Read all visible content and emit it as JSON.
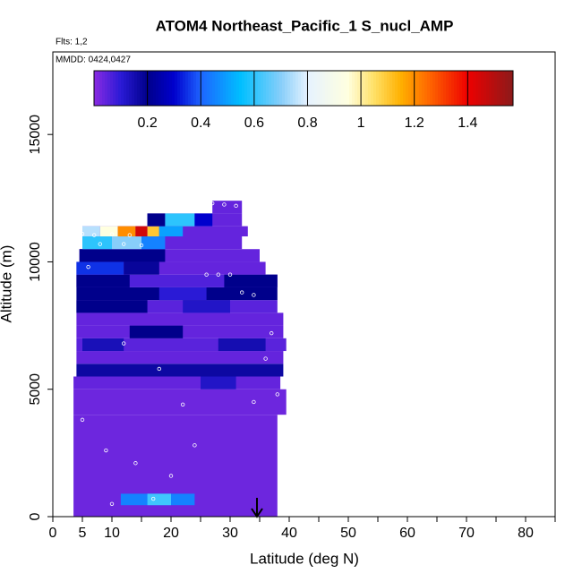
{
  "chart_data": {
    "type": "curtain",
    "title": "ATOM4 Northeast_Pacific_1 S_nucl_AMP",
    "flights": "Flts: 1,2",
    "dates": "MMDD: 0424,0427",
    "x_label": "Latitude (deg N)",
    "y_label": "Altitude (m)",
    "xlim": [
      0,
      85
    ],
    "xticks": [
      0,
      5,
      10,
      20,
      30,
      40,
      50,
      60,
      70,
      80
    ],
    "xminor_ticks": [
      15,
      25,
      35,
      45,
      55,
      65,
      75,
      85
    ],
    "ylim": [
      0,
      18240
    ],
    "yticks": [
      0,
      5000,
      10000,
      15000
    ],
    "colorbar_lim": [
      0,
      1.57
    ],
    "colorbar_ticks": [
      0.2,
      0.4,
      0.6,
      0.8,
      1.0,
      1.2,
      1.4
    ],
    "colorscale": [
      [
        0,
        "#8a2be2"
      ],
      [
        0.1,
        "#2a1ad6"
      ],
      [
        0.2,
        "#00008b"
      ],
      [
        0.3,
        "#0000cd"
      ],
      [
        0.4,
        "#1e64ff"
      ],
      [
        0.55,
        "#00bfff"
      ],
      [
        0.7,
        "#87cefa"
      ],
      [
        0.8,
        "#e6f2ff"
      ],
      [
        0.95,
        "#ffffe0"
      ],
      [
        1.05,
        "#ffe066"
      ],
      [
        1.15,
        "#ffb000"
      ],
      [
        1.25,
        "#ff6a00"
      ],
      [
        1.4,
        "#ee0000"
      ],
      [
        1.57,
        "#8b1a1a"
      ]
    ],
    "cells": [
      [
        3.5,
        38,
        0,
        4000,
        0.03
      ],
      [
        11.5,
        24,
        450,
        900,
        0.45
      ],
      [
        16,
        20,
        450,
        900,
        0.62
      ],
      [
        3.5,
        39.5,
        4000,
        5000,
        0.03
      ],
      [
        3.5,
        38.5,
        5000,
        5500,
        0.04
      ],
      [
        25,
        31,
        5000,
        5500,
        0.12
      ],
      [
        4,
        39,
        5500,
        6000,
        0.17
      ],
      [
        4,
        39,
        6000,
        6500,
        0.04
      ],
      [
        4,
        39.5,
        6500,
        7000,
        0.05
      ],
      [
        5,
        12,
        6500,
        7000,
        0.14
      ],
      [
        28,
        36,
        6500,
        7000,
        0.15
      ],
      [
        4,
        39,
        7000,
        7500,
        0.04
      ],
      [
        13,
        22,
        7000,
        7500,
        0.2
      ],
      [
        4,
        39,
        7500,
        8000,
        0.04
      ],
      [
        4,
        38,
        8000,
        8500,
        0.05
      ],
      [
        4,
        16,
        8000,
        8500,
        0.2
      ],
      [
        22,
        30,
        8000,
        8500,
        0.12
      ],
      [
        4,
        38,
        8500,
        9000,
        0.2
      ],
      [
        18,
        26,
        8500,
        9000,
        0.1
      ],
      [
        4,
        38,
        9000,
        9500,
        0.06
      ],
      [
        4,
        13,
        9000,
        9500,
        0.2
      ],
      [
        29,
        38,
        9000,
        9500,
        0.2
      ],
      [
        4,
        36,
        9500,
        10000,
        0.04
      ],
      [
        4,
        12,
        9500,
        10000,
        0.35
      ],
      [
        12,
        18,
        9500,
        10000,
        0.18
      ],
      [
        4.5,
        35,
        10000,
        10500,
        0.04
      ],
      [
        4.5,
        19,
        10000,
        10500,
        0.2
      ],
      [
        5,
        32,
        10500,
        11000,
        0.04
      ],
      [
        5,
        10,
        10500,
        11000,
        0.6
      ],
      [
        10,
        15,
        10500,
        11000,
        0.7
      ],
      [
        15,
        19,
        10500,
        11000,
        0.45
      ],
      [
        5,
        33,
        11000,
        11400,
        0.04
      ],
      [
        5,
        8,
        11000,
        11400,
        0.75
      ],
      [
        8,
        11,
        11000,
        11400,
        0.95
      ],
      [
        11,
        14,
        11000,
        11400,
        1.2
      ],
      [
        14,
        16,
        11000,
        11400,
        1.45
      ],
      [
        16,
        18,
        11000,
        11400,
        1.1
      ],
      [
        18,
        22,
        11000,
        11400,
        0.5
      ],
      [
        16,
        32,
        11400,
        11900,
        0.04
      ],
      [
        16,
        19,
        11400,
        11900,
        0.2
      ],
      [
        19,
        24,
        11400,
        11900,
        0.6
      ],
      [
        24,
        27,
        11400,
        11900,
        0.3
      ],
      [
        27,
        32,
        11900,
        12400,
        0.04
      ]
    ],
    "samples": [
      [
        5,
        11100
      ],
      [
        7,
        11050
      ],
      [
        10,
        11080
      ],
      [
        13,
        11050
      ],
      [
        8,
        10700
      ],
      [
        12,
        10700
      ],
      [
        15,
        10650
      ],
      [
        26,
        9500
      ],
      [
        28,
        9500
      ],
      [
        30,
        9500
      ],
      [
        32,
        8800
      ],
      [
        34,
        8700
      ],
      [
        37,
        7200
      ],
      [
        36,
        6200
      ],
      [
        38,
        4800
      ],
      [
        34,
        4500
      ],
      [
        5,
        3800
      ],
      [
        9,
        2600
      ],
      [
        14,
        2100
      ],
      [
        20,
        1600
      ],
      [
        24,
        2800
      ],
      [
        10,
        500
      ],
      [
        17,
        700
      ],
      [
        27,
        12300
      ],
      [
        29,
        12250
      ],
      [
        31,
        12200
      ],
      [
        6,
        9800
      ],
      [
        18,
        5800
      ],
      [
        22,
        4400
      ],
      [
        12,
        6800
      ]
    ]
  }
}
